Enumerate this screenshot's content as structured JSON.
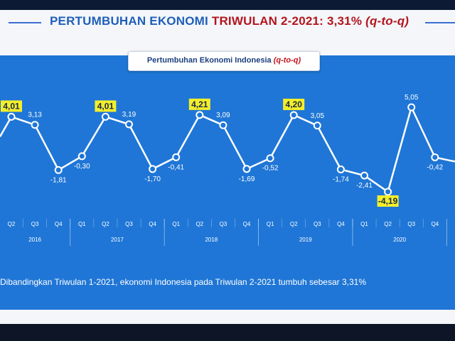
{
  "slide": {
    "title_part1": "PERTUMBUHAN EKONOMI",
    "title_part2": "TRIWULAN 2-2021: 3,31%",
    "title_part3": "(q-to-q)",
    "chart_subtitle": "Pertumbuhan Ekonomi Indonesia",
    "chart_subtitle_suffix": "(q-to-q)",
    "footer_text": "Dibandingkan Triwulan 1-2021, ekonomi Indonesia pada Triwulan 2-2021 tumbuh sebesar 3,31%"
  },
  "colors": {
    "panel": "#1f76d6",
    "line": "#ffffff",
    "highlight": "#f4ee2a",
    "title_blue": "#1f5fb9",
    "title_red": "#b3151d"
  },
  "chart_data": {
    "type": "line",
    "title": "Pertumbuhan Ekonomi Indonesia (q-to-q)",
    "years": [
      "2016",
      "2017",
      "2018",
      "2019",
      "2020"
    ],
    "categories": [
      "Q2",
      "Q3",
      "Q4",
      "Q1",
      "Q2",
      "Q3",
      "Q4",
      "Q1",
      "Q2",
      "Q3",
      "Q4",
      "Q1",
      "Q2",
      "Q3",
      "Q4",
      "Q1",
      "Q2",
      "Q3",
      "Q4"
    ],
    "values": [
      4.01,
      3.13,
      -1.81,
      -0.3,
      4.01,
      3.19,
      -1.7,
      -0.41,
      4.21,
      3.09,
      -1.69,
      -0.52,
      4.2,
      3.05,
      -1.74,
      -2.41,
      -4.19,
      5.05,
      -0.42
    ],
    "labels": [
      "4,01",
      "3,13",
      "-1,81",
      "-0,30",
      "4,01",
      "3,19",
      "-1,70",
      "-0,41",
      "4,21",
      "3,09",
      "-1,69",
      "-0,52",
      "4,20",
      "3,05",
      "-1,74",
      "-2,41",
      "-4,19",
      "5,05",
      "-0,42"
    ],
    "highlighted": [
      0,
      4,
      8,
      12,
      16
    ],
    "ylim": [
      -5,
      6
    ],
    "grid": false
  }
}
